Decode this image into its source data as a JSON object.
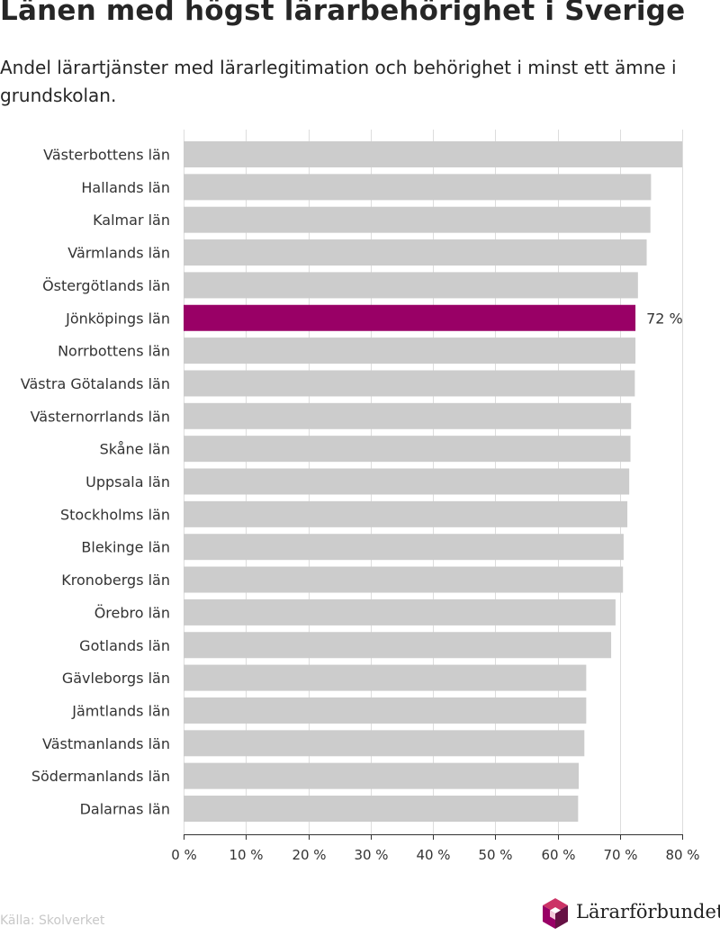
{
  "chart_data": {
    "type": "bar",
    "orientation": "horizontal",
    "title": "Länen med högst lärarbehörighet i Sverige",
    "subtitle": "Andel lärartjänster med lärarlegitimation och behörighet i minst ett ämne i grundskolan.",
    "categories": [
      "Västerbottens län",
      "Hallands län",
      "Kalmar län",
      "Värmlands län",
      "Östergötlands län",
      "Jönköpings län",
      "Norrbottens län",
      "Västra Götalands län",
      "Västernorrlands län",
      "Skåne län",
      "Uppsala län",
      "Stockholms län",
      "Blekinge län",
      "Kronobergs län",
      "Örebro län",
      "Gotlands län",
      "Gävleborgs län",
      "Jämtlands län",
      "Västmanlands län",
      "Södermanlands län",
      "Dalarnas län"
    ],
    "values": [
      80,
      75,
      74.9,
      74.3,
      72.9,
      72.5,
      72.5,
      72.4,
      71.8,
      71.7,
      71.5,
      71.2,
      70.6,
      70.5,
      69.3,
      68.6,
      64.6,
      64.6,
      64.3,
      63.4,
      63.3
    ],
    "highlight": {
      "category": "Jönköpings län",
      "label": "72 %"
    },
    "xlim": [
      0,
      80
    ],
    "xticks": [
      0,
      10,
      20,
      30,
      40,
      50,
      60,
      70,
      80
    ],
    "xtick_labels": [
      "0 %",
      "10 %",
      "20 %",
      "30 %",
      "40 %",
      "50 %",
      "60 %",
      "70 %",
      "80 %"
    ],
    "grid": true,
    "colors": {
      "bar": "#cccccc",
      "highlight": "#990066",
      "grid": "#dddddd",
      "axis": "#333333"
    }
  },
  "footer": {
    "source": "Källa: Skolverket",
    "logo_text": "Lärarförbundet",
    "logo_colors": {
      "pink": "#cc3366",
      "purple": "#990066",
      "dark": "#661144"
    }
  }
}
